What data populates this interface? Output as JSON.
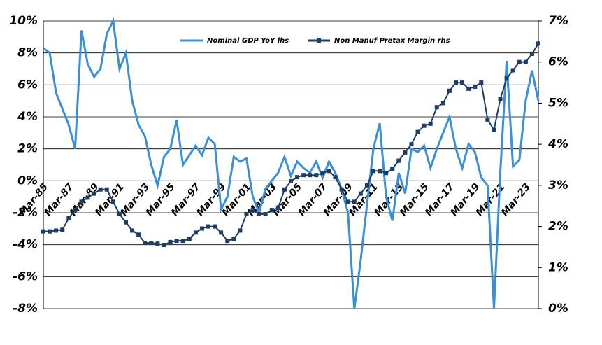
{
  "chart_data": {
    "type": "line",
    "categories": [
      "Mar-85",
      null,
      null,
      null,
      "Mar-87",
      null,
      null,
      null,
      "Mar-89",
      null,
      null,
      null,
      "Mar-91",
      null,
      null,
      null,
      "Mar-93",
      null,
      null,
      null,
      "Mar-95",
      null,
      null,
      null,
      "Mar-97",
      null,
      null,
      null,
      "Mar-99",
      null,
      null,
      null,
      "Mar-01",
      null,
      null,
      null,
      "Mar-03",
      null,
      null,
      null,
      "Mar-05",
      null,
      null,
      null,
      "Mar-07",
      null,
      null,
      null,
      "Mar-09",
      null,
      null,
      null,
      "Mar-11",
      null,
      null,
      null,
      "Mar-13",
      null,
      null,
      null,
      "Mar-15",
      null,
      null,
      null,
      "Mar-17",
      null,
      null,
      null,
      "Mar-19",
      null,
      null,
      null,
      "Mar-21",
      null,
      null,
      null,
      "Mar-23",
      null,
      null
    ],
    "series": [
      {
        "name": "Nominal GDP YoY lhs",
        "color": "#3b8fd8",
        "axis": "y",
        "values": [
          8.3,
          8.0,
          5.5,
          4.5,
          3.5,
          2.0,
          9.4,
          7.3,
          6.5,
          7.0,
          9.2,
          10.0,
          7.0,
          8.0,
          5.0,
          3.5,
          2.8,
          1.0,
          -0.3,
          1.5,
          2.0,
          3.8,
          1.0,
          1.6,
          2.2,
          1.6,
          2.7,
          2.3,
          -1.8,
          -1.0,
          1.5,
          1.2,
          1.4,
          -1.0,
          -2.0,
          -0.5,
          0.0,
          0.5,
          1.5,
          0.3,
          1.2,
          0.8,
          0.5,
          1.2,
          0.2,
          1.2,
          0.5,
          -0.5,
          -2.0,
          -8.0,
          -5.0,
          -1.5,
          2.0,
          3.6,
          -1.0,
          -2.5,
          0.5,
          -0.8,
          2.0,
          1.8,
          2.2,
          0.8,
          2.0,
          3.0,
          4.0,
          2.0,
          0.8,
          2.3,
          1.8,
          0.2,
          -0.3,
          -8.0,
          0.5,
          7.5,
          0.9,
          1.3,
          5.0,
          6.9,
          5.0
        ]
      },
      {
        "name": "Non Manuf Pretax Margin rhs",
        "color": "#1e3d66",
        "axis": "y2",
        "values": [
          1.88,
          1.88,
          1.9,
          1.92,
          2.2,
          2.4,
          2.6,
          2.7,
          2.8,
          2.9,
          2.9,
          2.6,
          2.3,
          2.1,
          1.9,
          1.8,
          1.6,
          1.6,
          1.58,
          1.55,
          1.62,
          1.65,
          1.65,
          1.7,
          1.85,
          1.95,
          2.0,
          2.0,
          1.85,
          1.65,
          1.7,
          1.9,
          2.3,
          2.4,
          2.3,
          2.3,
          2.4,
          2.45,
          2.9,
          3.1,
          3.2,
          3.25,
          3.25,
          3.25,
          3.3,
          3.35,
          3.2,
          2.9,
          2.6,
          2.6,
          2.8,
          3.0,
          3.35,
          3.35,
          3.3,
          3.4,
          3.6,
          3.8,
          4.0,
          4.3,
          4.45,
          4.5,
          4.9,
          5.0,
          5.3,
          5.5,
          5.5,
          5.35,
          5.4,
          5.5,
          4.6,
          4.35,
          5.1,
          5.6,
          5.8,
          6.0,
          6.0,
          6.2,
          6.45
        ]
      }
    ],
    "ylim": [
      -8,
      10
    ],
    "yticks": [
      {
        "value": -8,
        "label": "-8%"
      },
      {
        "value": -6,
        "label": "-6%"
      },
      {
        "value": -4,
        "label": "-4%"
      },
      {
        "value": -2,
        "label": "-2%"
      },
      {
        "value": 0,
        "label": "0%"
      },
      {
        "value": 2,
        "label": "2%"
      },
      {
        "value": 4,
        "label": "4%"
      },
      {
        "value": 6,
        "label": "6%"
      },
      {
        "value": 8,
        "label": "8%"
      },
      {
        "value": 10,
        "label": "10%"
      }
    ],
    "y2lim": [
      0,
      7
    ],
    "y2ticks": [
      {
        "value": 0,
        "label": "0%"
      },
      {
        "value": 1,
        "label": "1%"
      },
      {
        "value": 2,
        "label": "2%"
      },
      {
        "value": 3,
        "label": "3%"
      },
      {
        "value": 4,
        "label": "4%"
      },
      {
        "value": 5,
        "label": "5%"
      },
      {
        "value": 6,
        "label": "6%"
      },
      {
        "value": 7,
        "label": "7%"
      }
    ],
    "grid": true,
    "legend": "top"
  }
}
